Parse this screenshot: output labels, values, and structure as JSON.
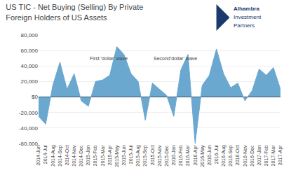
{
  "chart_data": {
    "type": "area",
    "title": "US TIC - Net Buying (Selling) By Private",
    "subtitle": "Foreign Holders of US Assets",
    "categories": [
      "2014-Jun",
      "2014-Jul",
      "2014-Aug",
      "2014-Sep",
      "2014-Oct",
      "2014-Nov",
      "2014-Dec",
      "2015-Jan",
      "2015-Feb",
      "2015-Mar",
      "2015-Apr",
      "2015-May",
      "2015-Jun",
      "2015-Jul",
      "2015-Aug",
      "2015-Sep",
      "2015-Oct",
      "2015-Nov",
      "2015-Dec",
      "2016-Jan",
      "2016-Feb",
      "2016-Mar",
      "2016-Apr",
      "2016-May",
      "2016-Jun",
      "2016-Jul",
      "2016-Aug",
      "2016-Sep",
      "2016-Oct",
      "2016-Nov",
      "2016-Dec",
      "2017-Jan",
      "2017-Feb",
      "2017-Mar",
      "2017-Apr"
    ],
    "values": [
      -25000,
      -35000,
      15000,
      45000,
      10000,
      30000,
      -5000,
      -12000,
      20000,
      22000,
      28000,
      65000,
      55000,
      30000,
      20000,
      -30000,
      18000,
      10000,
      2000,
      -25000,
      35000,
      55000,
      -60000,
      15000,
      28000,
      62000,
      30000,
      12000,
      18000,
      -5000,
      8000,
      36000,
      28000,
      38000,
      10000
    ],
    "color": "#6aa8d0",
    "ylim": [
      -60000,
      80000
    ],
    "yticks": [
      {
        "value": -60000,
        "label": "-60,000"
      },
      {
        "value": -40000,
        "label": "-40,000"
      },
      {
        "value": -20000,
        "label": "-20,000"
      },
      {
        "value": 0,
        "label": "$0"
      },
      {
        "value": 20000,
        "label": "20,000"
      },
      {
        "value": 40000,
        "label": "40,000"
      },
      {
        "value": 60000,
        "label": "60,000"
      },
      {
        "value": 80000,
        "label": "80,000"
      }
    ],
    "grid": true,
    "annotations": [
      {
        "text": "First ‘dollar’ wave",
        "x": "2015-Jan",
        "y": 45000
      },
      {
        "text": "Second‘dollar’ wave",
        "x": "2015-Oct",
        "y": 45000
      }
    ],
    "logo": [
      "Alhambra",
      "Investment",
      "Partners"
    ]
  }
}
